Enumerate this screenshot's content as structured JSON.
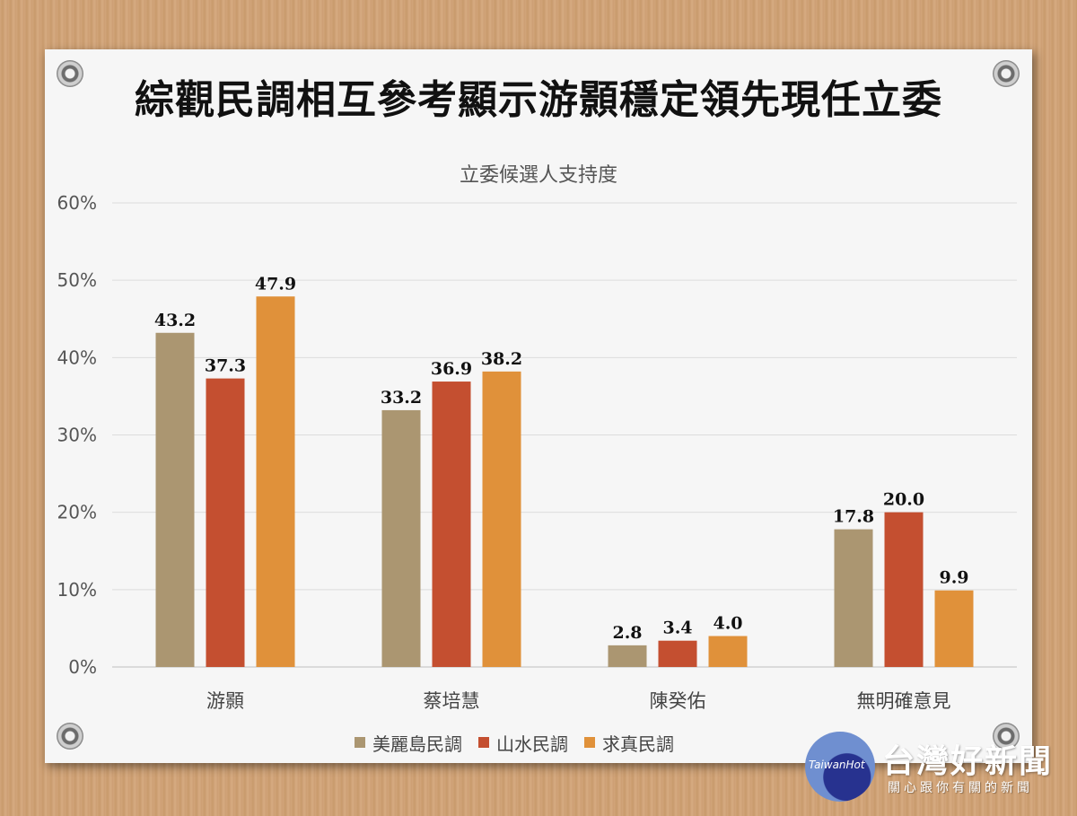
{
  "title": "綜觀民調相互參考顯示游顥穩定領先現任立委",
  "chart_data": {
    "type": "bar",
    "title": "立委候選人支持度",
    "xlabel": "",
    "ylabel": "",
    "ylim": [
      0,
      60
    ],
    "yticks": [
      "0%",
      "10%",
      "20%",
      "30%",
      "40%",
      "50%",
      "60%"
    ],
    "grid": true,
    "legend_position": "bottom",
    "categories": [
      "游顥",
      "蔡培慧",
      "陳癸佑",
      "無明確意見"
    ],
    "series": [
      {
        "name": "美麗島民調",
        "color": "#ab9671",
        "values": [
          43.2,
          33.2,
          2.8,
          17.8
        ],
        "labels": [
          "43.2",
          "33.2",
          "2.8",
          "17.8"
        ]
      },
      {
        "name": "山水民調",
        "color": "#c44f30",
        "values": [
          37.3,
          36.9,
          3.4,
          20.0
        ],
        "labels": [
          "37.3",
          "36.9",
          "3.4",
          "20.0"
        ]
      },
      {
        "name": "求真民調",
        "color": "#e0913a",
        "values": [
          47.9,
          38.2,
          4.0,
          9.9
        ],
        "labels": [
          "47.9",
          "38.2",
          "4.0",
          "9.9"
        ]
      }
    ]
  },
  "logo": {
    "globe_text": "TaiwanHot",
    "brand": "台灣好新聞",
    "tagline": "關心跟你有關的新聞"
  }
}
